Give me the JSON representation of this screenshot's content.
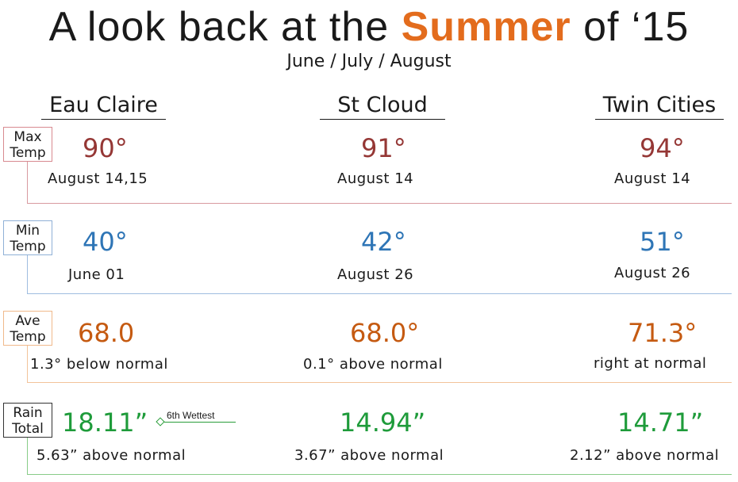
{
  "title": {
    "pre": "A look back at the ",
    "highlight": "Summer",
    "post": " of ‘15"
  },
  "subtitle": "June / July / August",
  "cities": [
    "Eau Claire",
    "St Cloud",
    "Twin Cities"
  ],
  "rows": {
    "max": {
      "label_line1": "Max",
      "label_line2": "Temp",
      "values": [
        "90°",
        "91°",
        "94°"
      ],
      "subs": [
        "August 14,15",
        "August 14",
        "August 14"
      ]
    },
    "min": {
      "label_line1": "Min",
      "label_line2": "Temp",
      "values": [
        "40°",
        "42°",
        "51°"
      ],
      "subs": [
        "June 01",
        "August 26",
        "August 26"
      ]
    },
    "ave": {
      "label_line1": "Ave",
      "label_line2": "Temp",
      "values": [
        "68.0",
        "68.0°",
        "71.3°"
      ],
      "subs": [
        "1.3° below normal",
        "0.1° above normal",
        "right at normal"
      ]
    },
    "rain": {
      "label_line1": "Rain",
      "label_line2": "Total",
      "values": [
        "18.11”",
        "14.94”",
        "14.71”"
      ],
      "subs": [
        "5.63” above normal",
        "3.67” above normal",
        "2.12” above normal"
      ],
      "note": "6th Wettest"
    }
  },
  "colors": {
    "highlight": "#e36c1d",
    "max": "#953735",
    "min": "#2e75b6",
    "ave": "#c55a11",
    "rain": "#1e9b3a"
  }
}
